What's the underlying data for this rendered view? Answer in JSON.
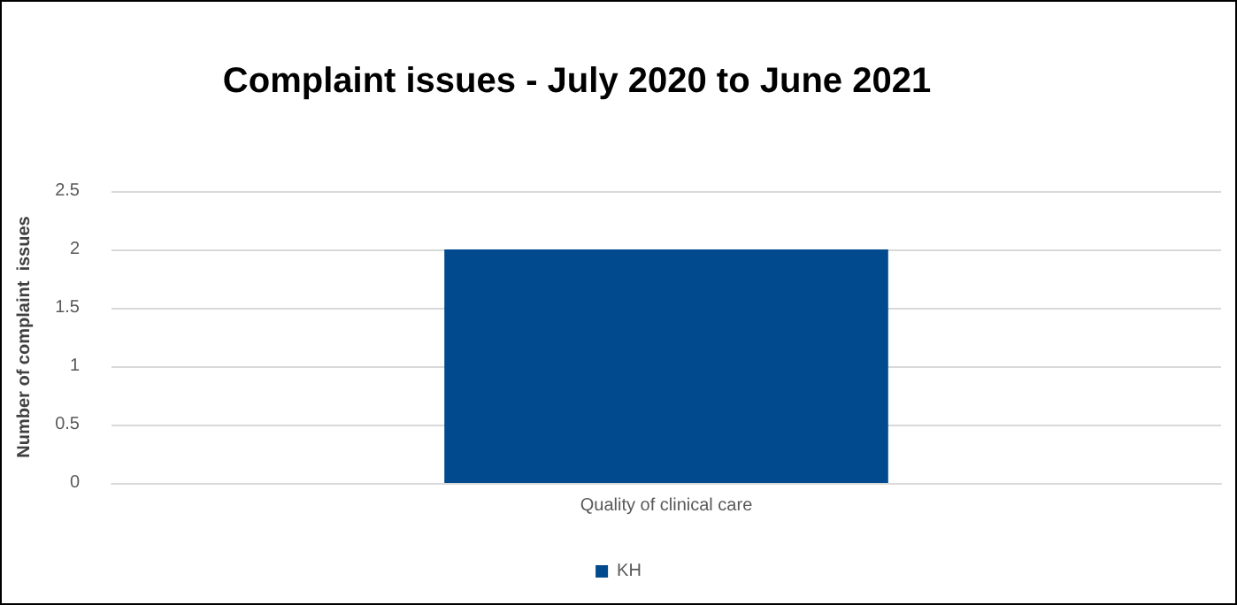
{
  "chart_data": {
    "type": "bar",
    "title": "Complaint issues - July 2020 to June 2021",
    "ylabel": "Number of complaint  issues",
    "categories": [
      "Quality of clinical care"
    ],
    "series": [
      {
        "name": "KH",
        "color": "#004a8d",
        "values": [
          2
        ]
      }
    ],
    "ylim": [
      0,
      2.5
    ],
    "yticks": [
      0,
      0.5,
      1,
      1.5,
      2,
      2.5
    ],
    "grid": "y",
    "legend": "bottom"
  }
}
